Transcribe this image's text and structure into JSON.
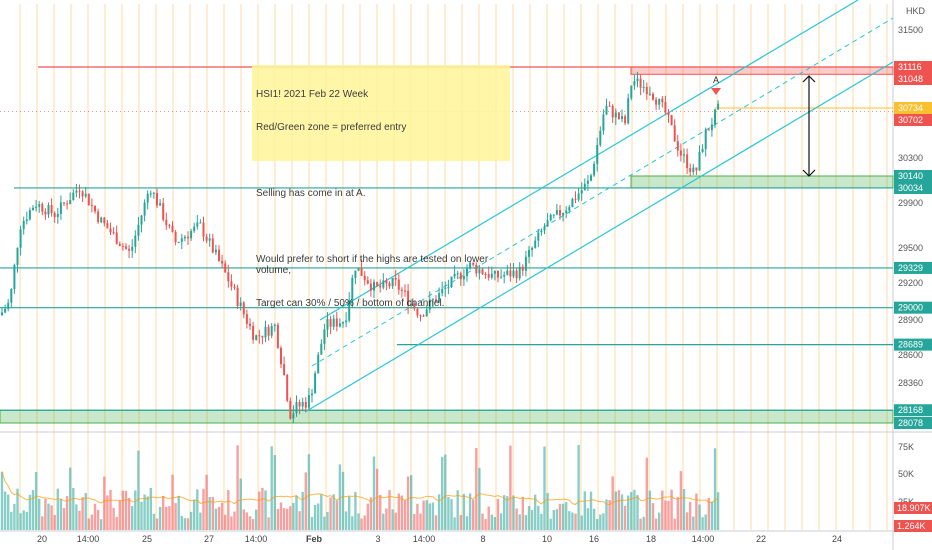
{
  "chart_data": {
    "type": "candlestick",
    "price_currency": "HKD",
    "annotation": {
      "lines": [
        "HSI1! 2021 Feb 22 Week",
        "Red/Green zone = preferred entry",
        "",
        "Selling has come in at A.",
        "",
        "Would prefer to short if the highs are tested on lower volume,",
        "Target can 30% / 50% / bottom of channel."
      ]
    },
    "point_marker": "A",
    "price_axis": {
      "min": 27950,
      "max": 31750,
      "ticks": [
        31500,
        30300,
        29900,
        29500,
        29200,
        28900,
        28600,
        28360
      ],
      "level_labels": [
        {
          "value": 31116,
          "color": "#ef5350"
        },
        {
          "value": 31048,
          "color": "#ef5350"
        },
        {
          "value": 30734,
          "color": "#fbc02d"
        },
        {
          "value": 30702,
          "color": "#ef5350"
        },
        {
          "value": 30140,
          "color": "#26a69a"
        },
        {
          "value": 30034,
          "color": "#26a69a"
        },
        {
          "value": 29329,
          "color": "#26a69a"
        },
        {
          "value": 29000,
          "color": "#26a69a"
        },
        {
          "value": 28689,
          "color": "#26a69a"
        },
        {
          "value": 28168,
          "color": "#26a69a"
        },
        {
          "value": 28078,
          "color": "#26a69a"
        }
      ]
    },
    "volume_axis": {
      "ticks": [
        "75K",
        "50K",
        "25K"
      ],
      "labels": [
        {
          "text": "18.907K",
          "color": "#ef5350"
        },
        {
          "text": "1.264K",
          "color": "#ef5350"
        }
      ]
    },
    "time_axis": {
      "labels": [
        "20",
        "14:00",
        "25",
        "27",
        "14:00",
        "Feb",
        "3",
        "14:00",
        "8",
        "10",
        "16",
        "18",
        "14:00",
        "22",
        "24"
      ]
    },
    "zones": [
      {
        "name": "sell-zone",
        "low": 31048,
        "high": 31116,
        "color": "#ef5350"
      },
      {
        "name": "buy-zone",
        "low": 30034,
        "high": 30140,
        "color": "#4caf50"
      },
      {
        "name": "support-zone",
        "low": 28078,
        "high": 28168,
        "color": "#4caf50"
      }
    ],
    "horizontal_levels": [
      31116,
      30034,
      29329,
      29000,
      28689,
      28168
    ],
    "colors": {
      "up": "#26a69a",
      "down": "#ef5350",
      "channel": "#26c6da",
      "level": "#26a69a",
      "resistance": "#ef5350",
      "current_price": "#fbc02d",
      "session_grid": "#fde3c0",
      "note": "#fff59d"
    }
  }
}
